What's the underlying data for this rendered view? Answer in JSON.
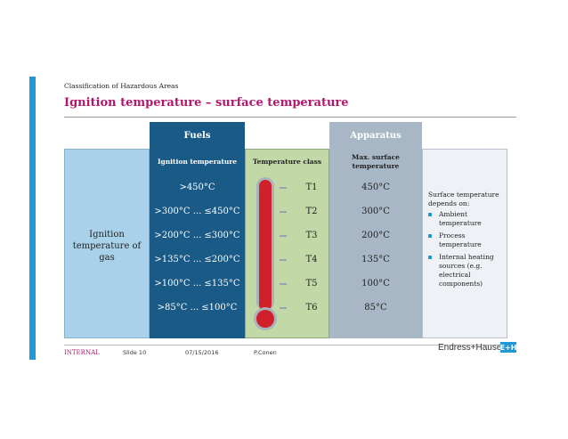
{
  "header": {
    "breadcrumb": "Classification of Hazardous Areas",
    "title": "Ignition temperature – surface temperature"
  },
  "table": {
    "group_fuels": "Fuels",
    "group_apparatus": "Apparatus",
    "left_label": "Ignition temperature of gas",
    "col_ignition": "Ignition temperature",
    "col_class": "Temperature class",
    "col_max": "Max. surface temperature",
    "rows": [
      {
        "ignition": ">450°C",
        "class": "T1",
        "max": "450°C"
      },
      {
        "ignition": ">300°C ... ≤450°C",
        "class": "T2",
        "max": "300°C"
      },
      {
        "ignition": ">200°C ... ≤300°C",
        "class": "T3",
        "max": "200°C"
      },
      {
        "ignition": ">135°C ... ≤200°C",
        "class": "T4",
        "max": "135°C"
      },
      {
        "ignition": ">100°C ... ≤135°C",
        "class": "T5",
        "max": "100°C"
      },
      {
        "ignition": ">85°C ... ≤100°C",
        "class": "T6",
        "max": "85°C"
      }
    ]
  },
  "note": {
    "intro": "Surface temperature depends on:",
    "items": [
      "Ambient temperature",
      "Process temperature",
      "Internal heating sources (e.g. electrical components)"
    ]
  },
  "footer": {
    "classification": "INTERNAL",
    "slide": "Slide 10",
    "date": "07/15/2016",
    "author": "P.Conen",
    "brand": "Endress+Hauser",
    "logo": "E+H"
  },
  "colors": {
    "title": "#b0186e",
    "accent": "#1f9ad6",
    "fuels": "#1a5a87",
    "apparatus": "#a8b7c6",
    "temp_class": "#c2d9a7",
    "thermometer": "#d0202a"
  },
  "icons": [
    "thermometer-icon",
    "eh-logo-icon"
  ]
}
